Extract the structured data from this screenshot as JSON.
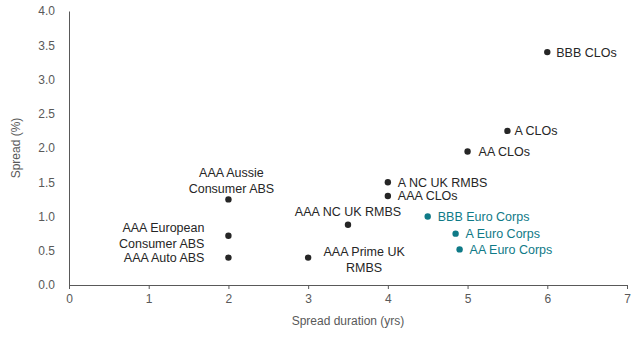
{
  "chart_data": {
    "type": "scatter",
    "xlabel": "Spread duration (yrs)",
    "ylabel": "Spread (%)",
    "xlim": [
      0,
      7
    ],
    "xticks": [
      0,
      1,
      2,
      3,
      4,
      5,
      6,
      7
    ],
    "ylim": [
      0,
      4
    ],
    "yticks": [
      {
        "value": 0,
        "label": "0.0"
      },
      0.5,
      {
        "value": 1,
        "label": "1.0"
      },
      1.5,
      {
        "value": 2,
        "label": "2.0"
      },
      2.5,
      {
        "value": 3,
        "label": "3.0"
      },
      3.5,
      {
        "value": 4,
        "label": "4.0"
      }
    ],
    "grid": false,
    "marker": "circle",
    "series": [
      {
        "color": "#262626",
        "x": [
          2,
          2,
          2,
          3,
          3.5,
          4,
          4,
          5,
          5.5,
          6
        ],
        "values": [
          1.25,
          0.72,
          0.4,
          0.4,
          0.88,
          1.5,
          1.3,
          1.95,
          2.25,
          3.4
        ],
        "labels": [
          "AAA Aussie\nConsumer ABS",
          "AAA European\nConsumer ABS",
          "AAA Auto ABS",
          "AAA Prime UK\nRMBS",
          "AAA NC UK RMBS",
          "A NC UK RMBS",
          "AAA CLOs",
          "AA CLOs",
          "A CLOs",
          "BBB CLOs"
        ]
      },
      {
        "color": "#0f7a87",
        "x": [
          4.5,
          4.85,
          4.9
        ],
        "values": [
          1.0,
          0.75,
          0.52
        ],
        "labels": [
          "BBB Euro Corps",
          "A Euro Corps",
          "AA Euro Corps"
        ]
      }
    ]
  }
}
